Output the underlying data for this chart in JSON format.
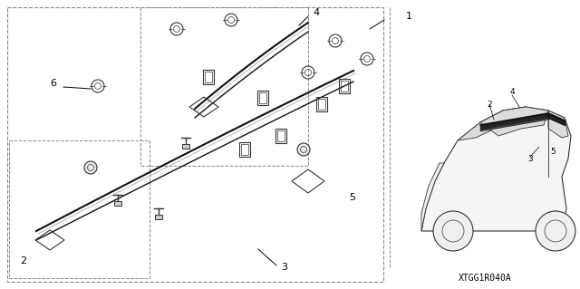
{
  "background_color": "#ffffff",
  "line_color": "#333333",
  "watermark": "XTGG1R040A",
  "label_fontsize": 8,
  "watermark_fontsize": 7,
  "fig_width": 6.4,
  "fig_height": 3.19,
  "dpi": 100
}
